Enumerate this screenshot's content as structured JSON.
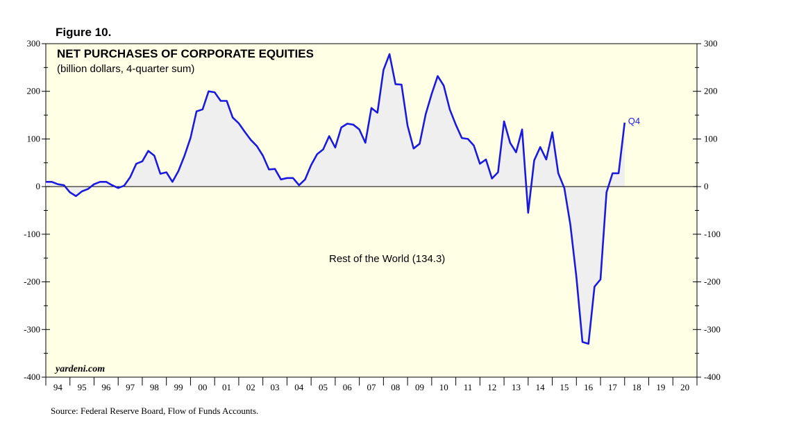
{
  "figure_label": "Figure 10.",
  "source_note": "Source: Federal Reserve Board, Flow of Funds Accounts.",
  "brand": "yardeni.com",
  "colors": {
    "background": "#ffffe6",
    "line": "#1a1adf",
    "fill": "#efefef",
    "axis": "#000000"
  },
  "chart_data": {
    "type": "line",
    "title": "NET PURCHASES OF CORPORATE EQUITIES",
    "subtitle": "(billion dollars, 4-quarter sum)",
    "series_label": "Rest of the World (134.3)",
    "end_label": "Q4",
    "ylim": [
      -400,
      300
    ],
    "y_ticks": [
      300,
      200,
      100,
      0,
      -100,
      -200,
      -300,
      -400
    ],
    "y_tick_labels": [
      "300",
      "200",
      "100",
      "0",
      "-100",
      "-200",
      "-300",
      "-400"
    ],
    "xlim": [
      1994.0,
      2021.0
    ],
    "x_tick_labels": [
      "94",
      "95",
      "96",
      "97",
      "98",
      "99",
      "00",
      "01",
      "02",
      "03",
      "04",
      "05",
      "06",
      "07",
      "08",
      "09",
      "10",
      "11",
      "12",
      "13",
      "14",
      "15",
      "16",
      "17",
      "18",
      "19",
      "20"
    ],
    "series": [
      {
        "name": "Rest of the World",
        "points": [
          [
            1994.0,
            10
          ],
          [
            1994.25,
            10
          ],
          [
            1994.5,
            5
          ],
          [
            1994.75,
            3
          ],
          [
            1995.0,
            -12
          ],
          [
            1995.25,
            -20
          ],
          [
            1995.5,
            -10
          ],
          [
            1995.75,
            -5
          ],
          [
            1996.0,
            5
          ],
          [
            1996.25,
            10
          ],
          [
            1996.5,
            10
          ],
          [
            1996.75,
            3
          ],
          [
            1997.0,
            -3
          ],
          [
            1997.25,
            2
          ],
          [
            1997.5,
            20
          ],
          [
            1997.75,
            48
          ],
          [
            1998.0,
            53
          ],
          [
            1998.25,
            75
          ],
          [
            1998.5,
            65
          ],
          [
            1998.75,
            27
          ],
          [
            1999.0,
            30
          ],
          [
            1999.25,
            10
          ],
          [
            1999.5,
            33
          ],
          [
            1999.75,
            65
          ],
          [
            2000.0,
            102
          ],
          [
            2000.25,
            158
          ],
          [
            2000.5,
            162
          ],
          [
            2000.75,
            200
          ],
          [
            2001.0,
            198
          ],
          [
            2001.25,
            180
          ],
          [
            2001.5,
            180
          ],
          [
            2001.75,
            145
          ],
          [
            2002.0,
            133
          ],
          [
            2002.25,
            115
          ],
          [
            2002.5,
            98
          ],
          [
            2002.75,
            85
          ],
          [
            2003.0,
            65
          ],
          [
            2003.25,
            36
          ],
          [
            2003.5,
            37
          ],
          [
            2003.75,
            15
          ],
          [
            2004.0,
            18
          ],
          [
            2004.25,
            18
          ],
          [
            2004.5,
            3
          ],
          [
            2004.75,
            15
          ],
          [
            2005.0,
            45
          ],
          [
            2005.25,
            68
          ],
          [
            2005.5,
            78
          ],
          [
            2005.75,
            106
          ],
          [
            2006.0,
            82
          ],
          [
            2006.25,
            124
          ],
          [
            2006.5,
            132
          ],
          [
            2006.75,
            130
          ],
          [
            2007.0,
            120
          ],
          [
            2007.25,
            92
          ],
          [
            2007.5,
            165
          ],
          [
            2007.75,
            155
          ],
          [
            2008.0,
            245
          ],
          [
            2008.25,
            278
          ],
          [
            2008.5,
            215
          ],
          [
            2008.75,
            214
          ],
          [
            2009.0,
            128
          ],
          [
            2009.25,
            80
          ],
          [
            2009.5,
            90
          ],
          [
            2009.75,
            152
          ],
          [
            2010.0,
            195
          ],
          [
            2010.25,
            232
          ],
          [
            2010.5,
            212
          ],
          [
            2010.75,
            162
          ],
          [
            2011.0,
            130
          ],
          [
            2011.25,
            102
          ],
          [
            2011.5,
            100
          ],
          [
            2011.75,
            86
          ],
          [
            2012.0,
            48
          ],
          [
            2012.25,
            57
          ],
          [
            2012.5,
            17
          ],
          [
            2012.75,
            30
          ],
          [
            2013.0,
            137
          ],
          [
            2013.25,
            92
          ],
          [
            2013.5,
            72
          ],
          [
            2013.75,
            120
          ],
          [
            2014.0,
            -55
          ],
          [
            2014.25,
            55
          ],
          [
            2014.5,
            83
          ],
          [
            2014.75,
            57
          ],
          [
            2015.0,
            114
          ],
          [
            2015.25,
            28
          ],
          [
            2015.5,
            -3
          ],
          [
            2015.75,
            -80
          ],
          [
            2016.0,
            -190
          ],
          [
            2016.25,
            -326
          ],
          [
            2016.5,
            -330
          ],
          [
            2016.75,
            -210
          ],
          [
            2017.0,
            -195
          ],
          [
            2017.25,
            -12
          ],
          [
            2017.5,
            28
          ],
          [
            2017.75,
            28
          ],
          [
            2018.0,
            134.3
          ]
        ]
      }
    ]
  }
}
